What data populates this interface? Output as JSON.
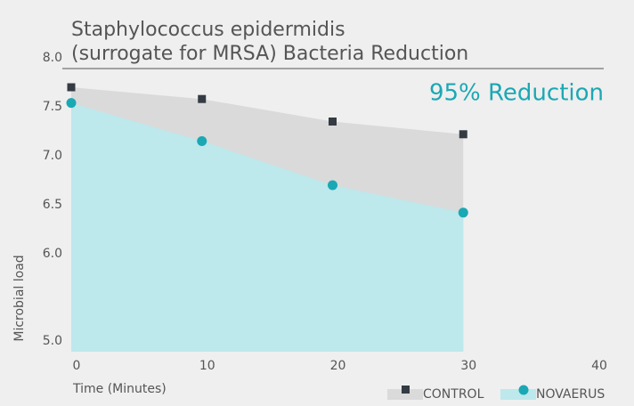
{
  "chart_data": {
    "type": "area",
    "title": [
      "Staphylococcus epidermidis",
      "(surrogate for MRSA) Bacteria Reduction"
    ],
    "annotation": "95% Reduction",
    "x_label": "Time (Minutes)",
    "y_label": "Microbial load",
    "x": [
      0,
      10,
      20,
      30
    ],
    "xlim": [
      0,
      40
    ],
    "xticks": [
      0,
      10,
      20,
      30,
      40
    ],
    "ylim": [
      5.0,
      8.0
    ],
    "yticks": [
      {
        "value": 5.0,
        "label": "5.0"
      },
      {
        "value": 6.0,
        "label": "6.0"
      },
      {
        "value": 6.5,
        "label": "6.5"
      },
      {
        "value": 7.0,
        "label": "7.0"
      },
      {
        "value": 7.5,
        "label": "7.5"
      },
      {
        "value": 8.0,
        "label": "8.0"
      }
    ],
    "legend": "bottom-right",
    "series": [
      {
        "name": "CONTROL",
        "color": "#343b42",
        "fill": "#dadada",
        "marker": "square",
        "values": [
          7.7,
          7.58,
          7.35,
          7.22
        ]
      },
      {
        "name": "NOVAERUS",
        "color": "#1aa8b4",
        "fill": "#bde8ec",
        "marker": "circle",
        "values": [
          7.54,
          7.15,
          6.7,
          6.42
        ]
      }
    ]
  }
}
